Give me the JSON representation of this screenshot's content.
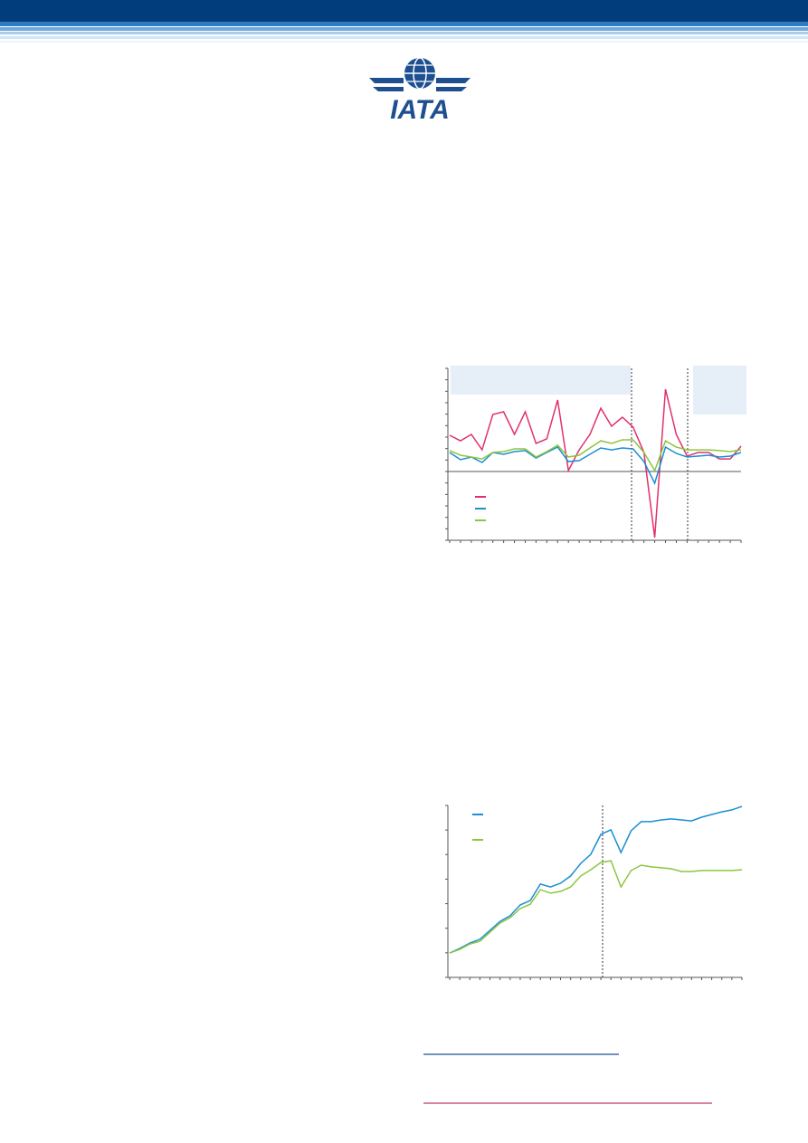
{
  "logo": "IATA",
  "chart_data": [
    {
      "type": "line",
      "categories": [
        null,
        null,
        null,
        null,
        null,
        null,
        null,
        null,
        null,
        null,
        null,
        null,
        null,
        null,
        null,
        null,
        null,
        null,
        null,
        null,
        null,
        null,
        null,
        null,
        null,
        null,
        null,
        null
      ],
      "ylim": [
        -6,
        9
      ],
      "yticks": [
        -6,
        -5,
        -4,
        -3,
        -2,
        -1,
        0,
        1,
        2,
        3,
        4,
        5,
        6,
        7,
        8,
        9
      ],
      "series": [
        {
          "color": "#e0316f",
          "values": [
            3.16,
            2.68,
            3.24,
            1.89,
            4.97,
            5.21,
            3.24,
            5.21,
            2.45,
            2.84,
            6.24,
            0.08,
            1.89,
            3.24,
            5.52,
            3.95,
            4.74,
            3.87,
            1.66,
            -5.76,
            7.18,
            3.24,
            1.34,
            1.66,
            1.66,
            1.1,
            1.1,
            2.21
          ]
        },
        {
          "color": "#1a8fd1",
          "values": [
            1.66,
            1.03,
            1.26,
            0.79,
            1.66,
            1.5,
            1.74,
            1.82,
            1.18,
            1.66,
            2.13,
            0.87,
            0.95,
            1.5,
            2.05,
            1.89,
            2.05,
            1.97,
            0.87,
            -1.03,
            2.13,
            1.58,
            1.26,
            1.34,
            1.42,
            1.26,
            1.34,
            1.66
          ]
        },
        {
          "color": "#8cc63f",
          "values": [
            1.82,
            1.42,
            1.26,
            1.1,
            1.66,
            1.74,
            1.97,
            1.97,
            1.26,
            1.74,
            2.29,
            1.26,
            1.42,
            2.05,
            2.68,
            2.45,
            2.76,
            2.76,
            1.66,
            0.08,
            2.68,
            2.13,
            1.89,
            1.89,
            1.89,
            1.82,
            1.74,
            1.89
          ]
        }
      ]
    },
    {
      "type": "line",
      "categories": [
        null,
        null,
        null,
        null,
        null,
        null,
        null,
        null,
        null,
        null,
        null,
        null,
        null,
        null,
        null,
        null,
        null,
        null,
        null,
        null,
        null,
        null,
        null,
        null,
        null,
        null,
        null,
        null,
        null,
        null
      ],
      "ylim": [
        0,
        7
      ],
      "yticks": [
        0,
        1,
        2,
        3,
        4,
        5,
        6,
        7
      ],
      "series": [
        {
          "color": "#1a8fd1",
          "values": [
            0.99,
            1.18,
            1.4,
            1.55,
            1.92,
            2.28,
            2.51,
            2.95,
            3.13,
            3.8,
            3.68,
            3.83,
            4.13,
            4.64,
            5.01,
            5.82,
            6.01,
            5.08,
            5.97,
            6.34,
            6.34,
            6.41,
            6.45,
            6.41,
            6.37,
            6.52,
            6.63,
            6.74,
            6.82,
            6.96
          ]
        },
        {
          "color": "#8cc63f",
          "values": [
            0.99,
            1.14,
            1.36,
            1.47,
            1.84,
            2.21,
            2.43,
            2.8,
            2.98,
            3.57,
            3.43,
            3.5,
            3.68,
            4.13,
            4.38,
            4.68,
            4.75,
            3.68,
            4.35,
            4.57,
            4.5,
            4.46,
            4.42,
            4.31,
            4.31,
            4.35,
            4.35,
            4.35,
            4.35,
            4.38
          ]
        }
      ]
    }
  ]
}
